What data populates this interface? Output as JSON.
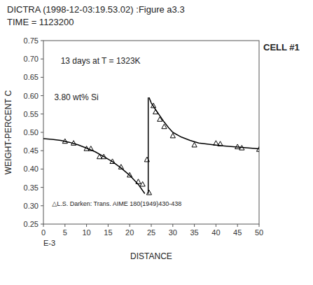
{
  "chart_data": {
    "type": "line",
    "title": "DICTRA (1998-12-03:19.53.02) :Figure a3.3",
    "subtitle": "TIME = 1123200",
    "x_label": "DISTANCE",
    "y_label": "WEIGHT-PERCENT C",
    "annotations": [
      "13 days at T = 1323K",
      "3.80 wt% Si",
      "△L.S. Darken: Trans. AIME 180(1949)430-438",
      "CELL #1",
      "E-3"
    ],
    "xlim": [
      0,
      50
    ],
    "ylim": [
      0.25,
      0.75
    ],
    "xticks": [
      0,
      5,
      10,
      15,
      20,
      25,
      30,
      35,
      40,
      45,
      50
    ],
    "yticks": [
      0.25,
      {
        "value": 0.3,
        "label": "0.30"
      },
      0.35,
      {
        "value": 0.4,
        "label": "0.40"
      },
      0.45,
      {
        "value": 0.5,
        "label": "0.50"
      },
      0.55,
      {
        "value": 0.6,
        "label": "0.60"
      },
      0.65,
      {
        "value": 0.7,
        "label": "0.70"
      },
      0.75
    ],
    "grid": false,
    "series": [
      {
        "type": "line",
        "line_style": "solid",
        "color": "#000000",
        "x": [
          0,
          2,
          4,
          6,
          8,
          10,
          12,
          14,
          16,
          18,
          20,
          22,
          23.5
        ],
        "values": [
          0.483,
          0.481,
          0.478,
          0.473,
          0.466,
          0.457,
          0.447,
          0.434,
          0.42,
          0.403,
          0.383,
          0.358,
          0.333
        ]
      },
      {
        "type": "line",
        "line_style": "solid",
        "color": "#000000",
        "x": [
          24.3,
          24.3
        ],
        "values": [
          0.333,
          0.595
        ]
      },
      {
        "type": "line",
        "line_style": "solid",
        "color": "#000000",
        "x": [
          24.5,
          25,
          26,
          27,
          28,
          29,
          30,
          32,
          34,
          36,
          38,
          40,
          42,
          44,
          46,
          48,
          50
        ],
        "values": [
          0.595,
          0.58,
          0.562,
          0.545,
          0.528,
          0.513,
          0.5,
          0.487,
          0.478,
          0.471,
          0.468,
          0.465,
          0.463,
          0.461,
          0.459,
          0.457,
          0.455
        ]
      },
      {
        "type": "scatter",
        "marker": "triangle",
        "color": "#000000",
        "x": [
          5,
          7,
          10,
          11,
          13,
          14,
          16,
          18,
          20,
          22,
          23,
          24,
          24.5,
          25.5,
          26,
          27,
          28,
          30,
          35,
          40,
          41,
          45,
          46,
          50
        ],
        "values": [
          0.475,
          0.47,
          0.455,
          0.455,
          0.433,
          0.433,
          0.42,
          0.405,
          0.383,
          0.365,
          0.358,
          0.425,
          0.335,
          0.572,
          0.555,
          0.535,
          0.515,
          0.49,
          0.465,
          0.47,
          0.468,
          0.46,
          0.457,
          0.453
        ]
      }
    ]
  }
}
